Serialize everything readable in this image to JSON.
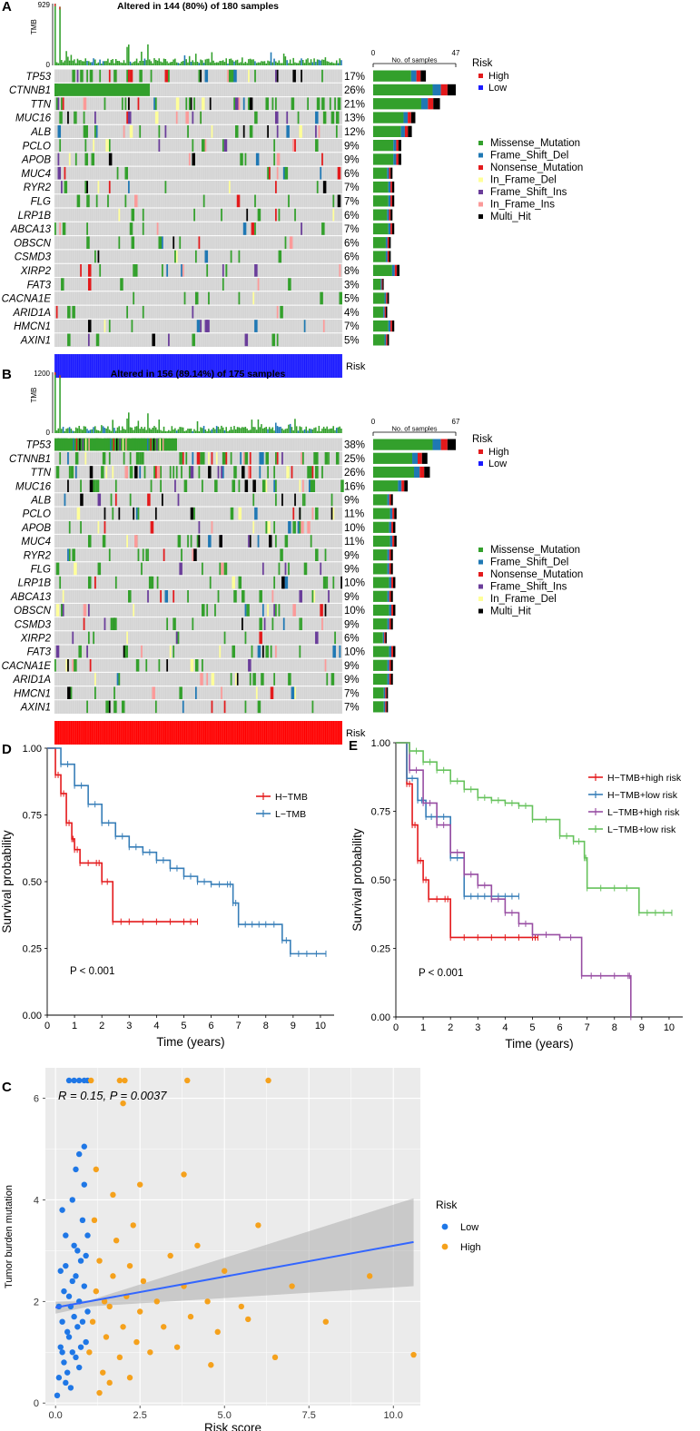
{
  "figure": {
    "panels": [
      {
        "id": "A",
        "label": "A",
        "title": "Altered in 144 (80%) of 180 samples",
        "tmb_label": "TMB",
        "tmb_ticks": [
          "929",
          "0"
        ],
        "tmb_max": 929,
        "samples_axis_label": "No. of samples",
        "samples_ticks": [
          "0",
          "47"
        ],
        "samples_max": 47,
        "bottom_label": "Risk",
        "risk_color": "#1a1aff",
        "legend_risk": {
          "title": "Risk",
          "items": [
            {
              "label": "High",
              "color": "#e31a1c"
            },
            {
              "label": "Low",
              "color": "#1a1aff"
            }
          ]
        },
        "legend_mutation": [
          {
            "label": "Missense_Mutation",
            "color": "#33a02c"
          },
          {
            "label": "Frame_Shift_Del",
            "color": "#1f78b4"
          },
          {
            "label": "Nonsense_Mutation",
            "color": "#e31a1c"
          },
          {
            "label": "In_Frame_Del",
            "color": "#ffff99"
          },
          {
            "label": "Frame_Shift_Ins",
            "color": "#6a3d9a"
          },
          {
            "label": "In_Frame_Ins",
            "color": "#fb9a99"
          },
          {
            "label": "Multi_Hit",
            "color": "#000000"
          }
        ],
        "genes": [
          {
            "name": "TP53",
            "pct": "17%",
            "count": 30
          },
          {
            "name": "CTNNB1",
            "pct": "26%",
            "count": 47
          },
          {
            "name": "TTN",
            "pct": "21%",
            "count": 38
          },
          {
            "name": "MUC16",
            "pct": "13%",
            "count": 24
          },
          {
            "name": "ALB",
            "pct": "12%",
            "count": 22
          },
          {
            "name": "PCLO",
            "pct": "9%",
            "count": 16
          },
          {
            "name": "APOB",
            "pct": "9%",
            "count": 16
          },
          {
            "name": "MUC4",
            "pct": "6%",
            "count": 11
          },
          {
            "name": "RYR2",
            "pct": "7%",
            "count": 12
          },
          {
            "name": "FLG",
            "pct": "7%",
            "count": 12
          },
          {
            "name": "LRP1B",
            "pct": "6%",
            "count": 11
          },
          {
            "name": "ABCA13",
            "pct": "7%",
            "count": 12
          },
          {
            "name": "OBSCN",
            "pct": "6%",
            "count": 10
          },
          {
            "name": "CSMD3",
            "pct": "6%",
            "count": 10
          },
          {
            "name": "XIRP2",
            "pct": "8%",
            "count": 15
          },
          {
            "name": "FAT3",
            "pct": "3%",
            "count": 6
          },
          {
            "name": "CACNA1E",
            "pct": "5%",
            "count": 9
          },
          {
            "name": "ARID1A",
            "pct": "4%",
            "count": 8
          },
          {
            "name": "HMCN1",
            "pct": "7%",
            "count": 12
          },
          {
            "name": "AXIN1",
            "pct": "5%",
            "count": 9
          }
        ]
      },
      {
        "id": "B",
        "label": "B",
        "title": "Altered in 156 (89.14%) of 175 samples",
        "tmb_label": "TMB",
        "tmb_ticks": [
          "1200",
          "0"
        ],
        "tmb_max": 1200,
        "samples_axis_label": "No. of samples",
        "samples_ticks": [
          "0",
          "67"
        ],
        "samples_max": 67,
        "bottom_label": "Risk",
        "risk_color": "#ff0000",
        "legend_risk": {
          "title": "Risk",
          "items": [
            {
              "label": "High",
              "color": "#e31a1c"
            },
            {
              "label": "Low",
              "color": "#1a1aff"
            }
          ]
        },
        "legend_mutation": [
          {
            "label": "Missense_Mutation",
            "color": "#33a02c"
          },
          {
            "label": "Frame_Shift_Del",
            "color": "#1f78b4"
          },
          {
            "label": "Nonsense_Mutation",
            "color": "#e31a1c"
          },
          {
            "label": "Frame_Shift_Ins",
            "color": "#6a3d9a"
          },
          {
            "label": "In_Frame_Del",
            "color": "#ffff99"
          },
          {
            "label": "Multi_Hit",
            "color": "#000000"
          }
        ],
        "genes": [
          {
            "name": "TP53",
            "pct": "38%",
            "count": 67
          },
          {
            "name": "CTNNB1",
            "pct": "25%",
            "count": 44
          },
          {
            "name": "TTN",
            "pct": "26%",
            "count": 46
          },
          {
            "name": "MUC16",
            "pct": "16%",
            "count": 28
          },
          {
            "name": "ALB",
            "pct": "9%",
            "count": 16
          },
          {
            "name": "PCLO",
            "pct": "11%",
            "count": 19
          },
          {
            "name": "APOB",
            "pct": "10%",
            "count": 18
          },
          {
            "name": "MUC4",
            "pct": "11%",
            "count": 19
          },
          {
            "name": "RYR2",
            "pct": "9%",
            "count": 16
          },
          {
            "name": "FLG",
            "pct": "9%",
            "count": 16
          },
          {
            "name": "LRP1B",
            "pct": "10%",
            "count": 18
          },
          {
            "name": "ABCA13",
            "pct": "9%",
            "count": 16
          },
          {
            "name": "OBSCN",
            "pct": "10%",
            "count": 18
          },
          {
            "name": "CSMD3",
            "pct": "9%",
            "count": 16
          },
          {
            "name": "XIRP2",
            "pct": "6%",
            "count": 11
          },
          {
            "name": "FAT3",
            "pct": "10%",
            "count": 18
          },
          {
            "name": "CACNA1E",
            "pct": "9%",
            "count": 16
          },
          {
            "name": "ARID1A",
            "pct": "9%",
            "count": 16
          },
          {
            "name": "HMCN1",
            "pct": "7%",
            "count": 12
          },
          {
            "name": "AXIN1",
            "pct": "7%",
            "count": 12
          }
        ]
      }
    ],
    "panel_D": {
      "label": "D"
    },
    "panel_E": {
      "label": "E"
    },
    "panel_C": {
      "label": "C"
    }
  },
  "chart_data": [
    {
      "type": "line",
      "panel": "D",
      "title": "",
      "xlabel": "Time (years)",
      "ylabel": "Survival probability",
      "xlim": [
        0,
        10.5
      ],
      "ylim": [
        0,
        1
      ],
      "xticks": [
        "0",
        "1",
        "2",
        "3",
        "4",
        "5",
        "6",
        "7",
        "8",
        "9",
        "10"
      ],
      "yticks": [
        "0.00",
        "0.25",
        "0.50",
        "0.75",
        "1.00"
      ],
      "annotation": "P < 0.001",
      "series": [
        {
          "name": "H−TMB",
          "color": "#e41a1c",
          "x": [
            0,
            0.3,
            0.5,
            0.7,
            0.9,
            1.0,
            1.2,
            1.8,
            2.0,
            2.4,
            3.0,
            4.0,
            5.0,
            5.5
          ],
          "y": [
            1.0,
            0.9,
            0.83,
            0.72,
            0.66,
            0.62,
            0.57,
            0.57,
            0.5,
            0.35,
            0.35,
            0.35,
            0.35,
            0.35
          ]
        },
        {
          "name": "L−TMB",
          "color": "#377eb8",
          "x": [
            0,
            0.5,
            1.0,
            1.5,
            2.0,
            2.5,
            3.0,
            3.5,
            4.0,
            4.5,
            5.0,
            5.5,
            6.0,
            6.6,
            6.8,
            7.0,
            7.5,
            8.0,
            8.6,
            8.9,
            9.5,
            10.2
          ],
          "y": [
            1.0,
            0.94,
            0.86,
            0.79,
            0.72,
            0.67,
            0.63,
            0.61,
            0.58,
            0.55,
            0.52,
            0.5,
            0.49,
            0.49,
            0.42,
            0.34,
            0.34,
            0.34,
            0.28,
            0.23,
            0.23,
            0.23
          ]
        }
      ]
    },
    {
      "type": "line",
      "panel": "E",
      "title": "",
      "xlabel": "Time (years)",
      "ylabel": "Survival probability",
      "xlim": [
        0,
        10.5
      ],
      "ylim": [
        0,
        1
      ],
      "xticks": [
        "0",
        "1",
        "2",
        "3",
        "4",
        "5",
        "6",
        "7",
        "8",
        "9",
        "10"
      ],
      "yticks": [
        "0.00",
        "0.25",
        "0.50",
        "0.75",
        "1.00"
      ],
      "annotation": "P < 0.001",
      "series": [
        {
          "name": "H−TMB+high risk",
          "color": "#e41a1c",
          "x": [
            0,
            0.4,
            0.6,
            0.8,
            1.0,
            1.2,
            1.8,
            2.0,
            3.0,
            4.0,
            5.0,
            5.2
          ],
          "y": [
            1.0,
            0.85,
            0.7,
            0.57,
            0.5,
            0.43,
            0.43,
            0.29,
            0.29,
            0.29,
            0.29,
            0.29
          ]
        },
        {
          "name": "H−TMB+low risk",
          "color": "#377eb8",
          "x": [
            0,
            0.4,
            0.8,
            1.1,
            1.5,
            2.0,
            2.5,
            3.0,
            3.5,
            4.0,
            4.5
          ],
          "y": [
            1.0,
            0.87,
            0.79,
            0.73,
            0.73,
            0.58,
            0.44,
            0.44,
            0.44,
            0.44,
            0.44
          ]
        },
        {
          "name": "L−TMB+high risk",
          "color": "#984ea3",
          "x": [
            0,
            0.5,
            1.0,
            1.5,
            2.0,
            2.5,
            3.0,
            3.5,
            4.0,
            4.5,
            5.0,
            6.0,
            6.8,
            7.5,
            8.5,
            8.6
          ],
          "y": [
            1.0,
            0.9,
            0.78,
            0.7,
            0.6,
            0.52,
            0.48,
            0.43,
            0.38,
            0.34,
            0.3,
            0.29,
            0.15,
            0.15,
            0.15,
            0.0
          ]
        },
        {
          "name": "L−TMB+low risk",
          "color": "#66c25c",
          "x": [
            0,
            0.5,
            1.0,
            1.5,
            2.0,
            2.5,
            3.0,
            3.5,
            4.0,
            4.5,
            5.0,
            6.0,
            6.5,
            6.9,
            7.0,
            8.0,
            8.9,
            9.5,
            10.1
          ],
          "y": [
            1.0,
            0.97,
            0.93,
            0.9,
            0.86,
            0.83,
            0.8,
            0.79,
            0.78,
            0.77,
            0.72,
            0.66,
            0.64,
            0.58,
            0.47,
            0.47,
            0.38,
            0.38,
            0.38
          ]
        }
      ]
    },
    {
      "type": "scatter",
      "panel": "C",
      "title": "",
      "xlabel": "Risk score",
      "ylabel": "Tumor burden mutation",
      "xlim": [
        -0.3,
        10.8
      ],
      "ylim": [
        -0.05,
        6.6
      ],
      "xticks": [
        "0.0",
        "2.5",
        "5.0",
        "7.5",
        "10.0"
      ],
      "yticks": [
        "0",
        "2",
        "4",
        "6"
      ],
      "annotation": "R = 0.15, P = 0.0037",
      "legend_title": "Risk",
      "fit_line": {
        "x": [
          0,
          10.6
        ],
        "y": [
          1.88,
          3.17
        ],
        "ci_low_end": 2.3,
        "ci_high_end": 4.03,
        "color": "#3366ff"
      },
      "series": [
        {
          "name": "Low",
          "color": "#1f77e6",
          "points": [
            [
              0.05,
              0.15
            ],
            [
              0.1,
              0.5
            ],
            [
              0.15,
              1.1
            ],
            [
              0.2,
              1.6
            ],
            [
              0.25,
              2.2
            ],
            [
              0.3,
              2.7
            ],
            [
              0.35,
              0.6
            ],
            [
              0.4,
              1.3
            ],
            [
              0.45,
              1.9
            ],
            [
              0.5,
              2.4
            ],
            [
              0.55,
              3.1
            ],
            [
              0.6,
              0.9
            ],
            [
              0.65,
              1.5
            ],
            [
              0.7,
              2.0
            ],
            [
              0.75,
              2.8
            ],
            [
              0.8,
              3.6
            ],
            [
              0.85,
              4.3
            ],
            [
              0.9,
              1.2
            ],
            [
              0.95,
              1.8
            ],
            [
              0.3,
              3.3
            ],
            [
              0.5,
              4.0
            ],
            [
              0.6,
              4.6
            ],
            [
              0.7,
              4.9
            ],
            [
              0.45,
              0.3
            ],
            [
              0.2,
              1.0
            ],
            [
              0.15,
              2.6
            ],
            [
              0.55,
              1.7
            ],
            [
              0.85,
              2.3
            ],
            [
              0.35,
              1.4
            ],
            [
              0.65,
              3.0
            ],
            [
              0.25,
              0.8
            ],
            [
              0.75,
              1.1
            ],
            [
              0.9,
              2.9
            ],
            [
              0.4,
              2.1
            ],
            [
              0.8,
              1.6
            ],
            [
              0.1,
              1.9
            ],
            [
              0.5,
              1.0
            ],
            [
              0.3,
              0.4
            ],
            [
              0.6,
              2.5
            ],
            [
              0.95,
              3.3
            ],
            [
              0.2,
              3.8
            ],
            [
              0.7,
              0.7
            ],
            [
              0.4,
              6.35
            ],
            [
              0.55,
              6.35
            ],
            [
              0.7,
              6.35
            ],
            [
              0.85,
              6.35
            ],
            [
              0.95,
              6.35
            ],
            [
              0.85,
              5.05
            ]
          ]
        },
        {
          "name": "High",
          "color": "#f5a11c",
          "points": [
            [
              1.0,
              1.0
            ],
            [
              1.1,
              1.6
            ],
            [
              1.2,
              2.2
            ],
            [
              1.3,
              2.8
            ],
            [
              1.4,
              0.6
            ],
            [
              1.5,
              1.3
            ],
            [
              1.6,
              1.9
            ],
            [
              1.7,
              2.5
            ],
            [
              1.8,
              3.2
            ],
            [
              1.9,
              0.9
            ],
            [
              2.0,
              1.5
            ],
            [
              2.1,
              2.1
            ],
            [
              2.2,
              2.7
            ],
            [
              2.3,
              3.5
            ],
            [
              2.4,
              1.2
            ],
            [
              2.5,
              1.8
            ],
            [
              2.6,
              2.4
            ],
            [
              2.8,
              1.0
            ],
            [
              3.0,
              2.0
            ],
            [
              3.2,
              1.5
            ],
            [
              3.4,
              2.9
            ],
            [
              3.6,
              1.1
            ],
            [
              3.8,
              2.3
            ],
            [
              4.0,
              1.7
            ],
            [
              4.2,
              3.1
            ],
            [
              4.5,
              2.0
            ],
            [
              4.8,
              1.4
            ],
            [
              5.0,
              2.6
            ],
            [
              5.5,
              1.9
            ],
            [
              6.0,
              3.5
            ],
            [
              6.5,
              0.9
            ],
            [
              7.0,
              2.3
            ],
            [
              8.0,
              1.6
            ],
            [
              9.3,
              2.5
            ],
            [
              10.6,
              0.95
            ],
            [
              1.2,
              4.6
            ],
            [
              1.7,
              4.1
            ],
            [
              2.0,
              5.9
            ],
            [
              2.5,
              4.3
            ],
            [
              3.8,
              4.5
            ],
            [
              4.6,
              0.75
            ],
            [
              5.7,
              1.65
            ],
            [
              1.05,
              6.35
            ],
            [
              1.9,
              6.35
            ],
            [
              2.05,
              6.35
            ],
            [
              3.9,
              6.35
            ],
            [
              6.3,
              6.35
            ],
            [
              1.3,
              0.2
            ],
            [
              1.6,
              0.4
            ],
            [
              2.2,
              0.5
            ],
            [
              1.15,
              3.6
            ],
            [
              1.45,
              2.0
            ]
          ]
        }
      ]
    }
  ]
}
